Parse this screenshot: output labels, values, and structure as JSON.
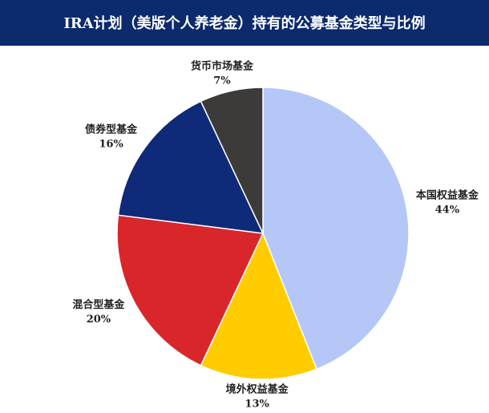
{
  "chart_data": {
    "type": "pie",
    "title": "IRA计划（美版个人养老金）持有的公募基金类型与比例",
    "categories": [
      "本国权益基金",
      "境外权益基金",
      "混合型基金",
      "债券型基金",
      "货币市场基金"
    ],
    "values": [
      44,
      13,
      20,
      16,
      7
    ],
    "value_labels": [
      "44%",
      "13%",
      "20%",
      "16%",
      "7%"
    ],
    "colors": [
      "#b4c7f7",
      "#ffcc00",
      "#d9262a",
      "#0e2a78",
      "#3d3a3a"
    ]
  }
}
